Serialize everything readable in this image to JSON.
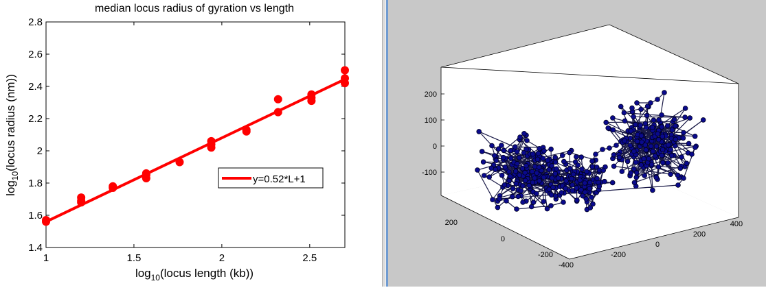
{
  "chart_data": [
    {
      "type": "scatter",
      "title": "median locus radius of gyration vs length",
      "xlabel_main": "log",
      "xlabel_sub": "10",
      "xlabel_rest": "(locus length (kb))",
      "ylabel_main": "log",
      "ylabel_sub": "10",
      "ylabel_rest": "(locus radius (nm))",
      "xlim": [
        1,
        2.7
      ],
      "ylim": [
        1.4,
        2.8
      ],
      "xticks": [
        1,
        1.5,
        2,
        2.5
      ],
      "xtick_labels": [
        "1",
        "1.5",
        "2",
        "2.5"
      ],
      "yticks": [
        1.4,
        1.6,
        1.8,
        2,
        2.2,
        2.4,
        2.6,
        2.8
      ],
      "ytick_labels": [
        "1.4",
        "1.6",
        "1.8",
        "2",
        "2.2",
        "2.4",
        "2.6",
        "2.8"
      ],
      "grid": false,
      "legend_position": "middle-right",
      "color": "#ff0000",
      "points": [
        {
          "x": 1.0,
          "y": 1.56
        },
        {
          "x": 1.0,
          "y": 1.57
        },
        {
          "x": 1.2,
          "y": 1.68
        },
        {
          "x": 1.2,
          "y": 1.69
        },
        {
          "x": 1.2,
          "y": 1.71
        },
        {
          "x": 1.38,
          "y": 1.77
        },
        {
          "x": 1.38,
          "y": 1.78
        },
        {
          "x": 1.57,
          "y": 1.83
        },
        {
          "x": 1.57,
          "y": 1.85
        },
        {
          "x": 1.57,
          "y": 1.86
        },
        {
          "x": 1.76,
          "y": 1.93
        },
        {
          "x": 1.94,
          "y": 2.02
        },
        {
          "x": 1.94,
          "y": 2.04
        },
        {
          "x": 1.94,
          "y": 2.06
        },
        {
          "x": 2.14,
          "y": 2.12
        },
        {
          "x": 2.14,
          "y": 2.13
        },
        {
          "x": 2.32,
          "y": 2.24
        },
        {
          "x": 2.32,
          "y": 2.32
        },
        {
          "x": 2.51,
          "y": 2.31
        },
        {
          "x": 2.51,
          "y": 2.33
        },
        {
          "x": 2.51,
          "y": 2.35
        },
        {
          "x": 2.7,
          "y": 2.42
        },
        {
          "x": 2.7,
          "y": 2.45
        },
        {
          "x": 2.7,
          "y": 2.5
        }
      ],
      "fit": {
        "slope": 0.52,
        "intercept": 1.04,
        "x_range": [
          1,
          2.7
        ],
        "legend_label": "y=0.52*L+1"
      }
    },
    {
      "type": "scatter3d",
      "background": "#c8c8c8",
      "marker_color": "#0a0a8c",
      "z_ticks": [
        "200",
        "100",
        "0",
        "-100"
      ],
      "x_ticks_left": [
        "200",
        "0",
        "-200"
      ],
      "y_ticks_bottom": [
        "-400",
        "-200",
        "0",
        "200",
        "400"
      ]
    }
  ]
}
